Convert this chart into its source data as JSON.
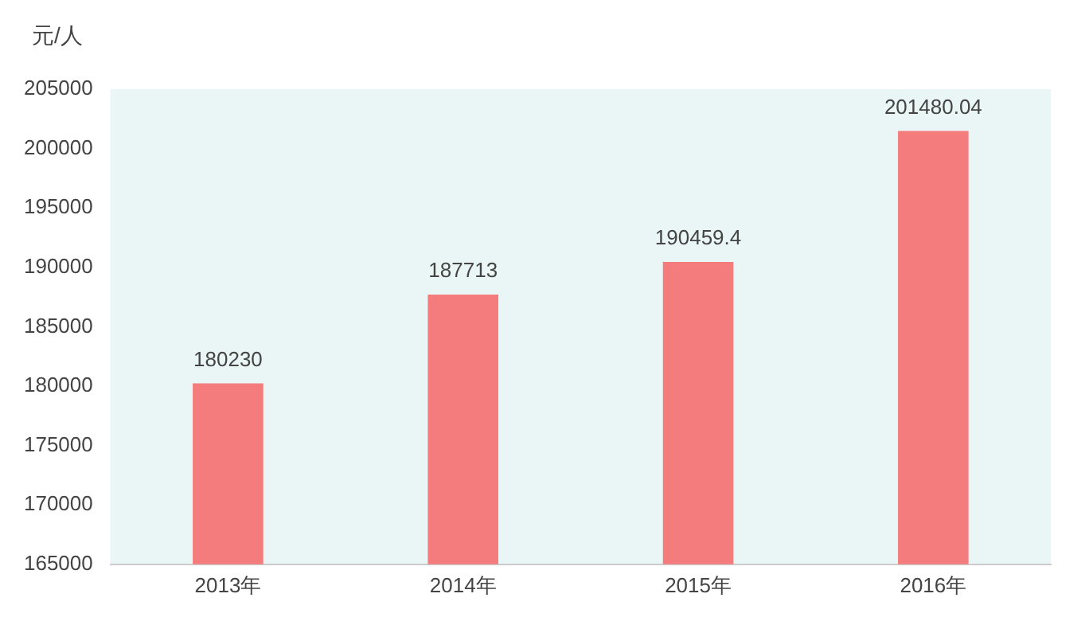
{
  "chart_data": {
    "type": "bar",
    "ylabel": "元/人",
    "categories": [
      "2013年",
      "2014年",
      "2015年",
      "2016年"
    ],
    "values": [
      180230,
      187713,
      190459.4,
      201480.04
    ],
    "color": "#f47c7c",
    "ylim": [
      165000,
      205000
    ],
    "yticks": [
      165000,
      170000,
      175000,
      180000,
      185000,
      190000,
      195000,
      200000,
      205000
    ],
    "data_labels": true,
    "grid": false,
    "legend": false
  }
}
